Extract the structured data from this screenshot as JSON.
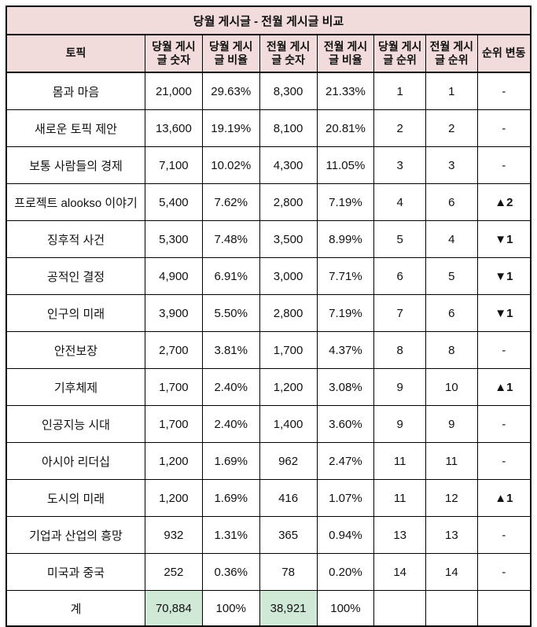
{
  "chart_data": {
    "type": "table",
    "title": "당월 게시글 - 전월 게시글 비교",
    "columns": [
      "토픽",
      "당월 게시 글 숫자",
      "당월 게시 글 비율",
      "전월 게시 글 숫자",
      "전월 게시 글 비율",
      "당월 게시 글 순위",
      "전월 게시 글 순위",
      "순위 변동"
    ],
    "rows": [
      {
        "topic": "몸과 마음",
        "cur_count": "21,000",
        "cur_ratio": "29.63%",
        "prev_count": "8,300",
        "prev_ratio": "21.33%",
        "cur_rank": "1",
        "prev_rank": "1",
        "change": "-",
        "change_dir": "none"
      },
      {
        "topic": "새로운 토픽 제안",
        "cur_count": "13,600",
        "cur_ratio": "19.19%",
        "prev_count": "8,100",
        "prev_ratio": "20.81%",
        "cur_rank": "2",
        "prev_rank": "2",
        "change": "-",
        "change_dir": "none"
      },
      {
        "topic": "보통 사람들의 경제",
        "cur_count": "7,100",
        "cur_ratio": "10.02%",
        "prev_count": "4,300",
        "prev_ratio": "11.05%",
        "cur_rank": "3",
        "prev_rank": "3",
        "change": "-",
        "change_dir": "none"
      },
      {
        "topic": "프로젝트 alookso 이야기",
        "cur_count": "5,400",
        "cur_ratio": "7.62%",
        "prev_count": "2,800",
        "prev_ratio": "7.19%",
        "cur_rank": "4",
        "prev_rank": "6",
        "change": "▲2",
        "change_dir": "up"
      },
      {
        "topic": "징후적 사건",
        "cur_count": "5,300",
        "cur_ratio": "7.48%",
        "prev_count": "3,500",
        "prev_ratio": "8.99%",
        "cur_rank": "5",
        "prev_rank": "4",
        "change": "▼1",
        "change_dir": "down"
      },
      {
        "topic": "공적인 결정",
        "cur_count": "4,900",
        "cur_ratio": "6.91%",
        "prev_count": "3,000",
        "prev_ratio": "7.71%",
        "cur_rank": "6",
        "prev_rank": "5",
        "change": "▼1",
        "change_dir": "down"
      },
      {
        "topic": "인구의 미래",
        "cur_count": "3,900",
        "cur_ratio": "5.50%",
        "prev_count": "2,800",
        "prev_ratio": "7.19%",
        "cur_rank": "7",
        "prev_rank": "6",
        "change": "▼1",
        "change_dir": "down"
      },
      {
        "topic": "안전보장",
        "cur_count": "2,700",
        "cur_ratio": "3.81%",
        "prev_count": "1,700",
        "prev_ratio": "4.37%",
        "cur_rank": "8",
        "prev_rank": "8",
        "change": "-",
        "change_dir": "none"
      },
      {
        "topic": "기후체제",
        "cur_count": "1,700",
        "cur_ratio": "2.40%",
        "prev_count": "1,200",
        "prev_ratio": "3.08%",
        "cur_rank": "9",
        "prev_rank": "10",
        "change": "▲1",
        "change_dir": "up"
      },
      {
        "topic": "인공지능 시대",
        "cur_count": "1,700",
        "cur_ratio": "2.40%",
        "prev_count": "1,400",
        "prev_ratio": "3.60%",
        "cur_rank": "9",
        "prev_rank": "9",
        "change": "-",
        "change_dir": "none"
      },
      {
        "topic": "아시아 리더십",
        "cur_count": "1,200",
        "cur_ratio": "1.69%",
        "prev_count": "962",
        "prev_ratio": "2.47%",
        "cur_rank": "11",
        "prev_rank": "11",
        "change": "-",
        "change_dir": "none"
      },
      {
        "topic": "도시의 미래",
        "cur_count": "1,200",
        "cur_ratio": "1.69%",
        "prev_count": "416",
        "prev_ratio": "1.07%",
        "cur_rank": "11",
        "prev_rank": "12",
        "change": "▲1",
        "change_dir": "up"
      },
      {
        "topic": "기업과 산업의 흥망",
        "cur_count": "932",
        "cur_ratio": "1.31%",
        "prev_count": "365",
        "prev_ratio": "0.94%",
        "cur_rank": "13",
        "prev_rank": "13",
        "change": "-",
        "change_dir": "none"
      },
      {
        "topic": "미국과 중국",
        "cur_count": "252",
        "cur_ratio": "0.36%",
        "prev_count": "78",
        "prev_ratio": "0.20%",
        "cur_rank": "14",
        "prev_rank": "14",
        "change": "-",
        "change_dir": "none"
      }
    ],
    "total": {
      "topic": "계",
      "cur_count": "70,884",
      "cur_ratio": "100%",
      "prev_count": "38,921",
      "prev_ratio": "100%",
      "cur_rank": "",
      "prev_rank": "",
      "change": ""
    }
  }
}
